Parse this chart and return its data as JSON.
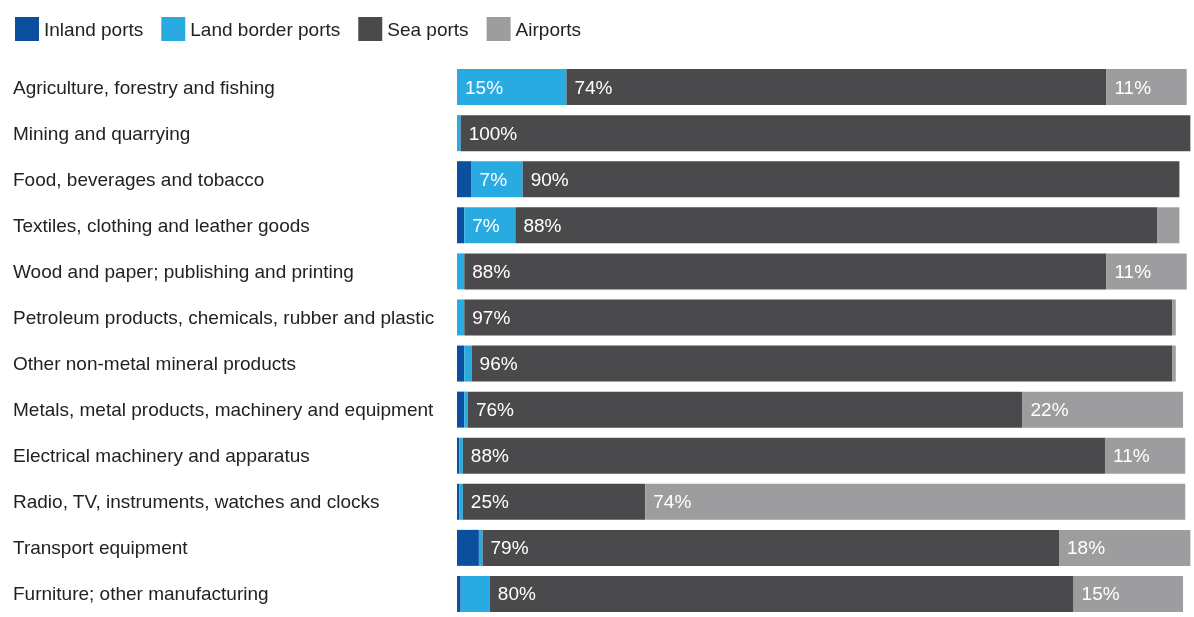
{
  "chart_data": {
    "type": "bar",
    "orientation": "horizontal",
    "stacked": true,
    "legend": "top left",
    "grid": false,
    "xlim": [
      0,
      101
    ],
    "categories": [
      "Agriculture, forestry and fishing",
      "Mining and quarrying",
      "Food, beverages and tobacco",
      "Textiles, clothing and leather goods",
      "Wood and paper; publishing and printing",
      "Petroleum products, chemicals, rubber and plastic",
      "Other non-metal mineral products",
      "Metals, metal products, machinery and equipment",
      "Electrical machinery and apparatus",
      "Radio, TV, instruments, watches and clocks",
      "Transport equipment",
      "Furniture; other manufacturing"
    ],
    "series": [
      {
        "name": "Inland ports",
        "color": "#0b4f9e",
        "values": [
          0,
          0,
          2,
          1,
          0,
          0,
          1,
          1,
          0.3,
          0.3,
          3,
          0.5
        ],
        "value_labels": [
          null,
          null,
          null,
          null,
          null,
          null,
          null,
          null,
          null,
          null,
          null,
          null
        ]
      },
      {
        "name": "Land border ports",
        "color": "#29abe2",
        "values": [
          15,
          0.5,
          7,
          7,
          1,
          1,
          1,
          0.5,
          0.5,
          0.5,
          0.5,
          4
        ],
        "value_labels": [
          "15%",
          null,
          "7%",
          "7%",
          null,
          null,
          null,
          null,
          null,
          null,
          null,
          null
        ]
      },
      {
        "name": "Sea ports",
        "color": "#4a4a4d",
        "values": [
          74,
          100,
          90,
          88,
          88,
          97,
          96,
          76,
          88,
          25,
          79,
          80
        ],
        "value_labels": [
          "74%",
          "100%",
          "90%",
          "88%",
          "88%",
          "97%",
          "96%",
          "76%",
          "88%",
          "25%",
          "79%",
          "80%"
        ]
      },
      {
        "name": "Airports",
        "color": "#9d9d9f",
        "values": [
          11,
          0,
          0,
          3,
          11,
          0.5,
          0.5,
          22,
          11,
          74,
          18,
          15
        ],
        "value_labels": [
          "11%",
          null,
          null,
          null,
          "11%",
          null,
          null,
          "22%",
          "11%",
          "74%",
          "18%",
          "15%"
        ]
      }
    ]
  }
}
